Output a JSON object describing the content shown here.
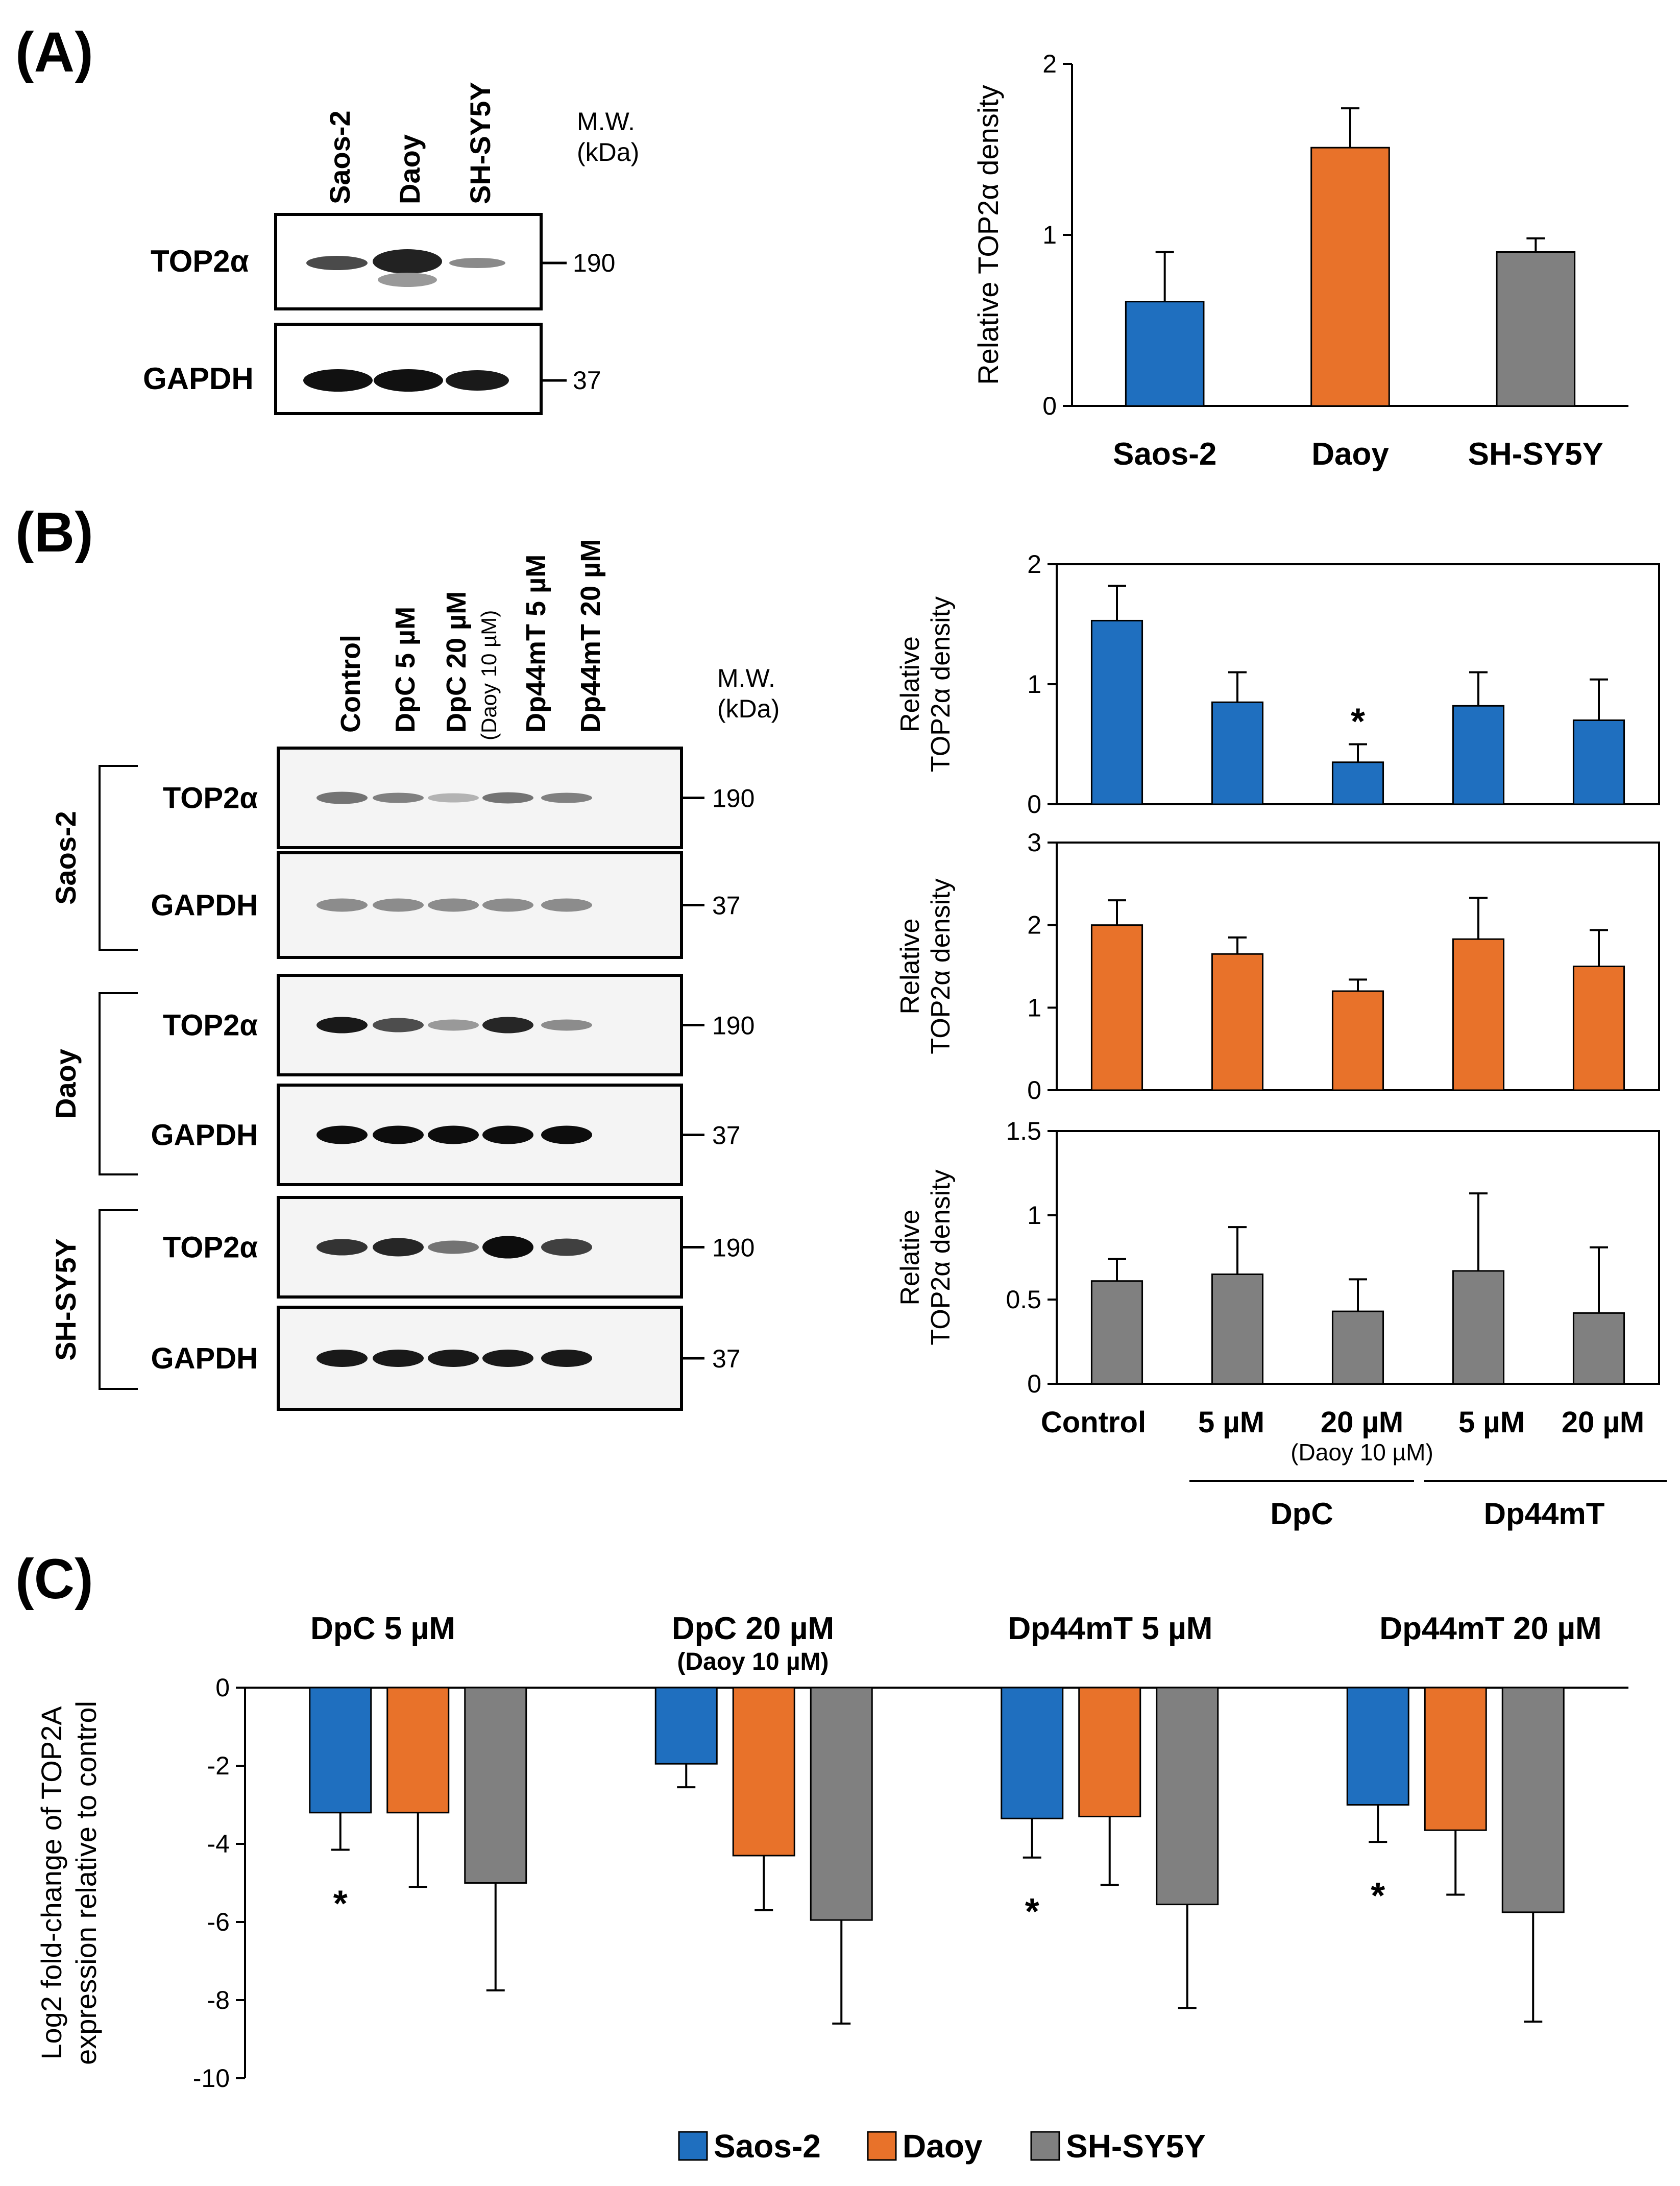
{
  "panel_labels": [
    "(A)",
    "(B)",
    "(C)"
  ],
  "colors": {
    "saos2": "#1f6fbf",
    "daoy": "#e8722a",
    "shsy5y": "#808080",
    "axis": "#000000"
  },
  "panelA": {
    "blot": {
      "lanes": [
        "Saos-2",
        "Daoy",
        "SH-SY5Y"
      ],
      "mw_title": [
        "M.W.",
        "(kDa)"
      ],
      "rows": [
        {
          "protein": "TOP2α",
          "mw": "190"
        },
        {
          "protein": "GAPDH",
          "mw": "37"
        }
      ]
    }
  },
  "panelB": {
    "blot": {
      "lanes": [
        "Control",
        "DpC 5 µM",
        "DpC 20 µM",
        "Dp44mT 5 µM",
        "Dp44mT 20 µM"
      ],
      "lane_note": "(Daoy 10 µM)",
      "mw_title": [
        "M.W.",
        "(kDa)"
      ],
      "groups": [
        {
          "cell": "Saos-2",
          "rows": [
            {
              "protein": "TOP2α",
              "mw": "190"
            },
            {
              "protein": "GAPDH",
              "mw": "37"
            }
          ]
        },
        {
          "cell": "Daoy",
          "rows": [
            {
              "protein": "TOP2α",
              "mw": "190"
            },
            {
              "protein": "GAPDH",
              "mw": "37"
            }
          ]
        },
        {
          "cell": "SH-SY5Y",
          "rows": [
            {
              "protein": "TOP2α",
              "mw": "190"
            },
            {
              "protein": "GAPDH",
              "mw": "37"
            }
          ]
        }
      ]
    },
    "group_labels": {
      "dpc": "DpC",
      "dp44mt": "Dp44mT",
      "note": "(Daoy 10 µM)"
    }
  },
  "chart_data": [
    {
      "id": "A",
      "type": "bar",
      "categories": [
        "Saos-2",
        "Daoy",
        "SH-SY5Y"
      ],
      "values": [
        0.61,
        1.51,
        0.9
      ],
      "errors": [
        0.29,
        0.23,
        0.08
      ],
      "ylabel": "Relative TOP2α  density",
      "ylim": [
        0,
        2
      ],
      "yticks": [
        0,
        1,
        2
      ]
    },
    {
      "id": "B1",
      "type": "bar",
      "cell": "Saos-2",
      "categories": [
        "Control",
        "5 µM",
        "20 µM",
        "5 µM",
        "20 µM"
      ],
      "values": [
        1.53,
        0.85,
        0.35,
        0.82,
        0.7
      ],
      "errors": [
        0.29,
        0.25,
        0.15,
        0.28,
        0.34
      ],
      "significant": [
        false,
        false,
        true,
        false,
        false
      ],
      "ylabel": [
        "Relative",
        "TOP2α density"
      ],
      "ylim": [
        0,
        2
      ],
      "yticks": [
        0,
        1,
        2
      ]
    },
    {
      "id": "B2",
      "type": "bar",
      "cell": "Daoy",
      "values": [
        2.0,
        1.65,
        1.2,
        1.83,
        1.5
      ],
      "errors": [
        0.3,
        0.2,
        0.14,
        0.5,
        0.44
      ],
      "significant": [
        false,
        false,
        false,
        false,
        false
      ],
      "ylabel": [
        "Relative",
        "TOP2α density"
      ],
      "ylim": [
        0,
        3
      ],
      "yticks": [
        0,
        1,
        2,
        3
      ]
    },
    {
      "id": "B3",
      "type": "bar",
      "cell": "SH-SY5Y",
      "values": [
        0.61,
        0.65,
        0.43,
        0.67,
        0.42
      ],
      "errors": [
        0.13,
        0.28,
        0.19,
        0.46,
        0.39
      ],
      "significant": [
        false,
        false,
        false,
        false,
        false
      ],
      "ylabel": [
        "Relative",
        "TOP2α density"
      ],
      "ylim": [
        0,
        1.5
      ],
      "yticks": [
        0,
        0.5,
        1,
        1.5
      ],
      "ytick_labels": [
        "0",
        "0.5",
        "1",
        "1.5"
      ]
    },
    {
      "id": "C",
      "type": "bar",
      "categories": [
        "DpC 5 µM",
        "DpC 20 µM",
        "Dp44mT 5 µM",
        "Dp44mT 20 µM"
      ],
      "category_note": "(Daoy 10 µM)",
      "series": [
        {
          "name": "Saos-2",
          "values": [
            -3.2,
            -1.95,
            -3.35,
            -3.0
          ],
          "errors": [
            0.95,
            0.6,
            1.0,
            0.95
          ],
          "significant": [
            true,
            false,
            true,
            true
          ]
        },
        {
          "name": "Daoy",
          "values": [
            -3.2,
            -4.3,
            -3.3,
            -3.65
          ],
          "errors": [
            1.9,
            1.4,
            1.75,
            1.65
          ],
          "significant": [
            false,
            false,
            false,
            false
          ]
        },
        {
          "name": "SH-SY5Y",
          "values": [
            -5.0,
            -5.95,
            -5.55,
            -5.75
          ],
          "errors": [
            2.75,
            2.65,
            2.65,
            2.8
          ],
          "significant": [
            false,
            false,
            false,
            false
          ]
        }
      ],
      "ylabel": [
        "Log2 fold-change of TOP2A",
        "expression relative to control"
      ],
      "ylim": [
        -10,
        0
      ],
      "yticks": [
        0,
        -2,
        -4,
        -6,
        -8,
        -10
      ],
      "legend": [
        "Saos-2",
        "Daoy",
        "SH-SY5Y"
      ],
      "legend_position": "bottom"
    }
  ],
  "significance_mark": "*"
}
